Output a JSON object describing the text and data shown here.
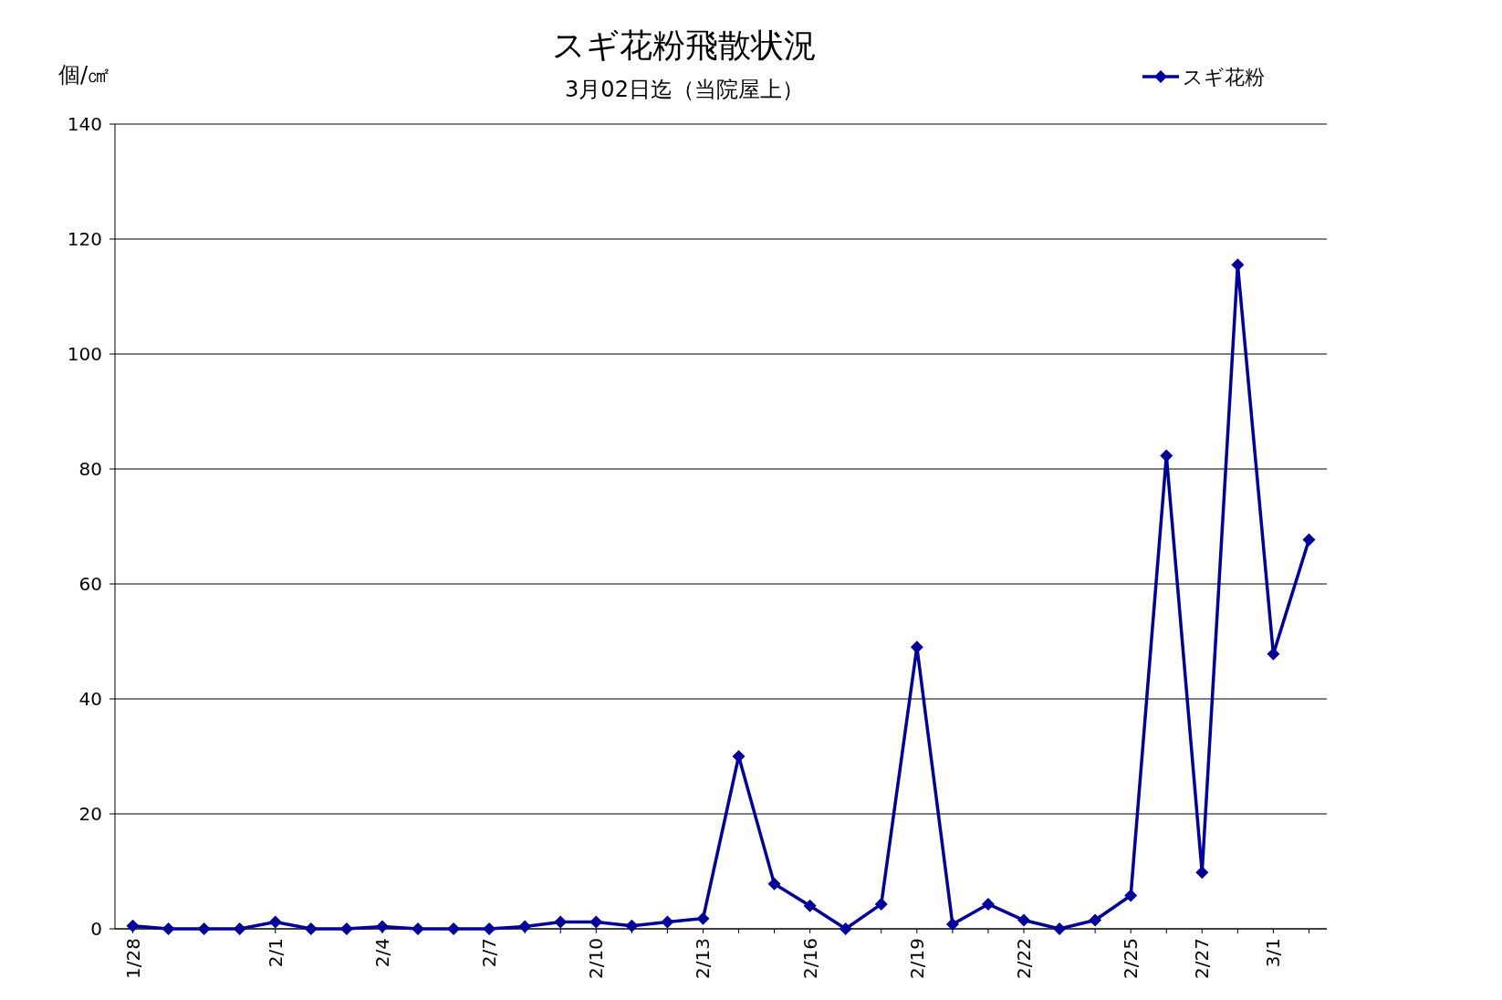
{
  "chart_data": {
    "type": "line",
    "title": "スギ花粉飛散状況",
    "subtitle": "3月02日迄（当院屋上）",
    "ylabel": "個/㎠",
    "categories": [
      "1/28",
      null,
      null,
      null,
      "2/1",
      null,
      null,
      "2/4",
      null,
      null,
      "2/7",
      null,
      null,
      "2/10",
      null,
      null,
      "2/13",
      null,
      null,
      "2/16",
      null,
      null,
      "2/19",
      null,
      null,
      "2/22",
      null,
      null,
      "2/25",
      null,
      "2/27",
      null,
      "3/1",
      null
    ],
    "series": [
      {
        "name": "スギ花粉",
        "color": "#000099",
        "values": [
          0.5,
          0,
          0,
          0,
          1.2,
          0,
          0,
          0.4,
          0,
          0,
          0,
          0.4,
          1.2,
          1.2,
          0.5,
          1.2,
          1.8,
          30,
          7.8,
          4,
          0,
          4.3,
          49,
          0.8,
          4.3,
          1.5,
          0,
          1.5,
          5.8,
          82.3,
          9.8,
          115.5,
          47.8,
          67.7
        ]
      }
    ],
    "ylim": [
      0,
      140
    ],
    "yticks": [
      0,
      20,
      40,
      60,
      80,
      100,
      120,
      140
    ],
    "grid": "y",
    "legend": "top right",
    "marker": "diamond",
    "line_style": "solid"
  }
}
